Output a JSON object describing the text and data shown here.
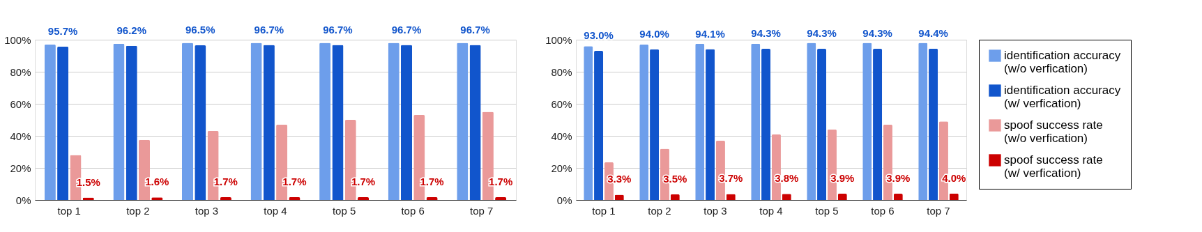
{
  "chart_data": [
    {
      "type": "bar",
      "categories": [
        "top 1",
        "top 2",
        "top 3",
        "top 4",
        "top 5",
        "top 6",
        "top 7"
      ],
      "ylim": [
        0,
        100
      ],
      "yticks": [
        {
          "value": 0,
          "label": "0%"
        },
        {
          "value": 20,
          "label": "20%"
        },
        {
          "value": 40,
          "label": "40%"
        },
        {
          "value": 60,
          "label": "60%"
        },
        {
          "value": 80,
          "label": "80%"
        },
        {
          "value": 100,
          "label": "100%"
        }
      ],
      "grid": "y",
      "legend": false,
      "series": [
        {
          "color": "#6d9eeb",
          "values": [
            97,
            97.5,
            98,
            98,
            98,
            98,
            98
          ]
        },
        {
          "color": "#1155cc",
          "values": [
            95.7,
            96.2,
            96.5,
            96.7,
            96.7,
            96.7,
            96.7
          ],
          "value_labels": [
            "95.7%",
            "96.2%",
            "96.5%",
            "96.7%",
            "96.7%",
            "96.7%",
            "96.7%"
          ]
        },
        {
          "color": "#ea9999",
          "values": [
            28,
            37.5,
            43,
            47,
            50,
            53,
            55
          ]
        },
        {
          "color": "#cc0000",
          "values": [
            1.5,
            1.6,
            1.7,
            1.7,
            1.7,
            1.7,
            1.7
          ],
          "value_labels": [
            "1.5%",
            "1.6%",
            "1.7%",
            "1.7%",
            "1.7%",
            "1.7%",
            "1.7%"
          ]
        }
      ]
    },
    {
      "type": "bar",
      "categories": [
        "top 1",
        "top 2",
        "top 3",
        "top 4",
        "top 5",
        "top 6",
        "top 7"
      ],
      "ylim": [
        0,
        100
      ],
      "yticks": [
        {
          "value": 0,
          "label": "0%"
        },
        {
          "value": 20,
          "label": "20%"
        },
        {
          "value": 40,
          "label": "40%"
        },
        {
          "value": 60,
          "label": "60%"
        },
        {
          "value": 80,
          "label": "80%"
        },
        {
          "value": 100,
          "label": "100%"
        }
      ],
      "grid": "y",
      "legend": "right",
      "series": [
        {
          "name": "identification accuracy (w/o verfication)",
          "color": "#6d9eeb",
          "values": [
            96,
            97,
            97.5,
            97.5,
            98,
            98,
            98
          ]
        },
        {
          "name": "identification accuracy (w/ verfication)",
          "color": "#1155cc",
          "values": [
            93.0,
            94.0,
            94.1,
            94.3,
            94.3,
            94.3,
            94.4
          ],
          "value_labels": [
            "93.0%",
            "94.0%",
            "94.1%",
            "94.3%",
            "94.3%",
            "94.3%",
            "94.4%"
          ]
        },
        {
          "name": "spoof success rate (w/o verfication)",
          "color": "#ea9999",
          "values": [
            23.5,
            32,
            37,
            41,
            44,
            47,
            49
          ]
        },
        {
          "name": "spoof success rate (w/ verfication)",
          "color": "#cc0000",
          "values": [
            3.3,
            3.5,
            3.7,
            3.8,
            3.9,
            3.9,
            4.0
          ],
          "value_labels": [
            "3.3%",
            "3.5%",
            "3.7%",
            "3.8%",
            "3.9%",
            "3.9%",
            "4.0%"
          ]
        }
      ]
    }
  ]
}
